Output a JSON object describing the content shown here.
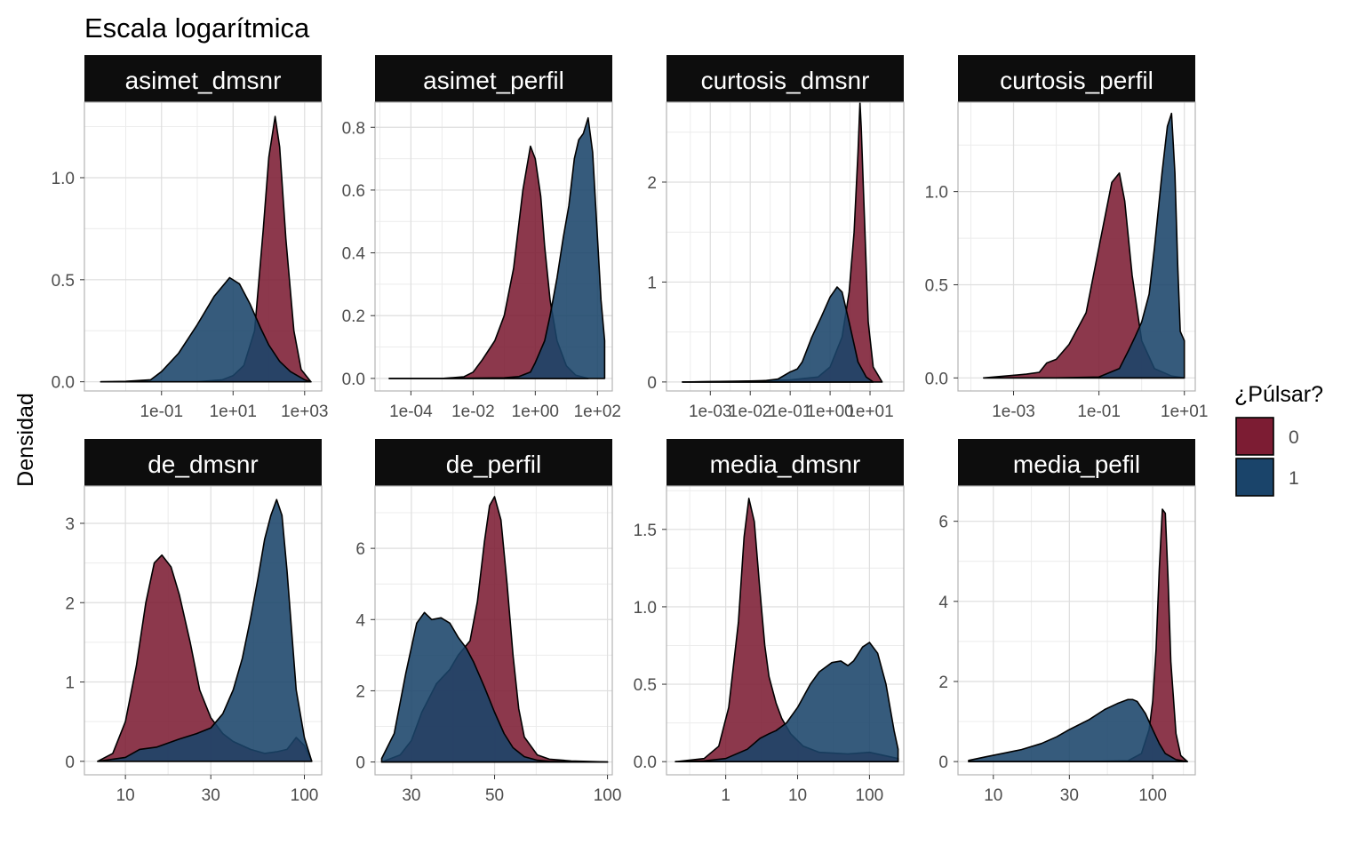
{
  "chart_data": {
    "type": "area",
    "title": "Escala logarítmica",
    "ylabel": "Densidad",
    "xlabel": "",
    "x_scale": "log10",
    "grid": true,
    "legend": {
      "title": "¿Púlsar?",
      "position": "right",
      "entries": [
        {
          "name": "0",
          "color": "#7c1c33"
        },
        {
          "name": "1",
          "color": "#1a446a"
        }
      ]
    },
    "panels": [
      {
        "name": "asimet_dmsnr",
        "xlim": [
          0.0007,
          3000
        ],
        "ylim": [
          -0.045,
          1.37
        ],
        "xticks": [
          0.1,
          10,
          1000
        ],
        "xtick_labels": [
          "1e-01",
          "1e+01",
          "1e+03"
        ],
        "yticks": [
          0,
          0.5,
          1.0
        ],
        "ytick_labels": [
          "0.0",
          "0.5",
          "1.0"
        ],
        "series": [
          {
            "name": "0",
            "x": [
              0.002,
              0.1,
              1,
              5,
              10,
              20,
              40,
              70,
              100,
              150,
              200,
              300,
              500,
              800,
              1500
            ],
            "y": [
              0,
              0,
              0,
              0.01,
              0.03,
              0.08,
              0.25,
              0.75,
              1.1,
              1.3,
              1.15,
              0.7,
              0.25,
              0.06,
              0
            ]
          },
          {
            "name": "1",
            "x": [
              0.002,
              0.01,
              0.05,
              0.1,
              0.3,
              1,
              3,
              8,
              15,
              30,
              60,
              100,
              200,
              400,
              1000,
              1500
            ],
            "y": [
              0,
              0.002,
              0.01,
              0.05,
              0.14,
              0.28,
              0.42,
              0.51,
              0.48,
              0.38,
              0.26,
              0.18,
              0.1,
              0.05,
              0.01,
              0
            ]
          }
        ]
      },
      {
        "name": "asimet_perfil",
        "xlim": [
          7e-06,
          300
        ],
        "ylim": [
          -0.04,
          0.88
        ],
        "xticks": [
          0.0001,
          0.01,
          1,
          100
        ],
        "xtick_labels": [
          "1e-04",
          "1e-02",
          "1e+00",
          "1e+02"
        ],
        "yticks": [
          0,
          0.2,
          0.4,
          0.6,
          0.8
        ],
        "ytick_labels": [
          "0.0",
          "0.2",
          "0.4",
          "0.6",
          "0.8"
        ],
        "series": [
          {
            "name": "0",
            "x": [
              2e-05,
              0.001,
              0.005,
              0.01,
              0.02,
              0.05,
              0.1,
              0.2,
              0.4,
              0.7,
              1,
              1.5,
              2,
              3,
              5,
              10,
              20,
              50
            ],
            "y": [
              0,
              0,
              0.005,
              0.02,
              0.06,
              0.12,
              0.2,
              0.35,
              0.6,
              0.74,
              0.7,
              0.58,
              0.42,
              0.25,
              0.12,
              0.04,
              0.01,
              0
            ]
          },
          {
            "name": "1",
            "x": [
              2e-05,
              0.001,
              0.1,
              0.3,
              0.7,
              1,
              2,
              3,
              5,
              8,
              12,
              18,
              25,
              35,
              50,
              70,
              130,
              170
            ],
            "y": [
              0,
              0,
              0.002,
              0.006,
              0.02,
              0.05,
              0.12,
              0.2,
              0.32,
              0.45,
              0.55,
              0.7,
              0.76,
              0.78,
              0.83,
              0.72,
              0.25,
              0.12
            ]
          }
        ]
      },
      {
        "name": "curtosis_dmsnr",
        "xlim": [
          8e-05,
          70
        ],
        "ylim": [
          -0.09,
          2.8
        ],
        "xticks": [
          0.001,
          0.01,
          0.1,
          1,
          10
        ],
        "xtick_labels": [
          "1e-03",
          "1e-02",
          "1e-01",
          "1e+00",
          "1e+01"
        ],
        "yticks": [
          0,
          1,
          2
        ],
        "ytick_labels": [
          "0",
          "1",
          "2"
        ],
        "series": [
          {
            "name": "0",
            "x": [
              0.0002,
              0.01,
              0.1,
              0.5,
              1,
              2,
              3,
              4,
              5,
              5.6,
              6,
              7,
              9,
              12,
              20
            ],
            "y": [
              0,
              0.01,
              0.02,
              0.05,
              0.15,
              0.45,
              0.9,
              1.5,
              2.3,
              2.8,
              2.55,
              1.8,
              0.6,
              0.15,
              0
            ]
          },
          {
            "name": "1",
            "x": [
              0.0002,
              0.005,
              0.02,
              0.05,
              0.1,
              0.15,
              0.2,
              0.35,
              0.6,
              1,
              1.5,
              2,
              3,
              5,
              8,
              12
            ],
            "y": [
              0,
              0.005,
              0.01,
              0.03,
              0.1,
              0.13,
              0.2,
              0.45,
              0.65,
              0.85,
              0.95,
              0.9,
              0.6,
              0.2,
              0.05,
              0
            ]
          }
        ]
      },
      {
        "name": "curtosis_perfil",
        "xlim": [
          5e-05,
          18
        ],
        "ylim": [
          -0.07,
          1.48
        ],
        "xticks": [
          0.001,
          0.1,
          10
        ],
        "xtick_labels": [
          "1e-03",
          "1e-01",
          "1e+01"
        ],
        "yticks": [
          0,
          0.5,
          1.0
        ],
        "ytick_labels": [
          "0.0",
          "0.5",
          "1.0"
        ],
        "series": [
          {
            "name": "0",
            "x": [
              0.0002,
              0.002,
              0.004,
              0.006,
              0.01,
              0.02,
              0.05,
              0.1,
              0.2,
              0.3,
              0.4,
              0.6,
              1,
              2,
              5,
              10
            ],
            "y": [
              0,
              0.02,
              0.03,
              0.08,
              0.1,
              0.18,
              0.35,
              0.7,
              1.05,
              1.1,
              0.95,
              0.55,
              0.2,
              0.05,
              0.01,
              0
            ]
          },
          {
            "name": "1",
            "x": [
              0.0002,
              0.01,
              0.1,
              0.3,
              0.5,
              0.7,
              1,
              1.5,
              2,
              3,
              4,
              5,
              6,
              7,
              8,
              10
            ],
            "y": [
              0,
              0,
              0.005,
              0.05,
              0.15,
              0.22,
              0.3,
              0.45,
              0.7,
              1.1,
              1.35,
              1.42,
              1.1,
              0.6,
              0.25,
              0.2
            ]
          }
        ]
      },
      {
        "name": "de_dmsnr",
        "xlim": [
          5.9,
          125
        ],
        "ylim": [
          -0.17,
          3.47
        ],
        "xticks": [
          10,
          30,
          100
        ],
        "xtick_labels": [
          "10",
          "30",
          "100"
        ],
        "yticks": [
          0,
          1,
          2,
          3
        ],
        "ytick_labels": [
          "0",
          "1",
          "2",
          "3"
        ],
        "series": [
          {
            "name": "0",
            "x": [
              7,
              8.5,
              10,
              11.5,
              13,
              14.5,
              16,
              18,
              20,
              23,
              26,
              30,
              35,
              40,
              50,
              60,
              70,
              80,
              90,
              100,
              110
            ],
            "y": [
              0,
              0.1,
              0.5,
              1.2,
              2.0,
              2.5,
              2.6,
              2.45,
              2.1,
              1.5,
              0.9,
              0.55,
              0.35,
              0.25,
              0.15,
              0.1,
              0.12,
              0.15,
              0.3,
              0.2,
              0
            ]
          },
          {
            "name": "1",
            "x": [
              7,
              10,
              12,
              15,
              20,
              25,
              30,
              35,
              40,
              45,
              50,
              55,
              60,
              65,
              70,
              75,
              80,
              90,
              100,
              110
            ],
            "y": [
              0,
              0.05,
              0.15,
              0.18,
              0.28,
              0.35,
              0.42,
              0.6,
              0.9,
              1.3,
              1.8,
              2.3,
              2.8,
              3.1,
              3.3,
              3.1,
              2.4,
              0.9,
              0.3,
              0
            ]
          }
        ]
      },
      {
        "name": "de_perfil",
        "xlim": [
          24,
          103
        ],
        "ylim": [
          -0.36,
          7.75
        ],
        "xticks": [
          30,
          50,
          100
        ],
        "xtick_labels": [
          "30",
          "50",
          "100"
        ],
        "yticks": [
          0,
          2,
          4,
          6
        ],
        "ytick_labels": [
          "0",
          "2",
          "4",
          "6"
        ],
        "series": [
          {
            "name": "0",
            "x": [
              25,
              28,
              30,
              32,
              35,
              38,
              40,
              43,
              45,
              47,
              48.5,
              50,
              52,
              54,
              56,
              58,
              60,
              65,
              70,
              80,
              100
            ],
            "y": [
              0,
              0.2,
              0.6,
              1.4,
              2.2,
              2.6,
              3.0,
              3.4,
              4.5,
              6.2,
              7.2,
              7.45,
              6.8,
              5.0,
              3.0,
              1.5,
              0.7,
              0.2,
              0.08,
              0.03,
              0
            ]
          },
          {
            "name": "1",
            "x": [
              25,
              27,
              29,
              31,
              32.5,
              34,
              36,
              38,
              40,
              42,
              44,
              47,
              50,
              53,
              56,
              60,
              65,
              70,
              80,
              100
            ],
            "y": [
              0.1,
              0.8,
              2.5,
              3.9,
              4.2,
              4.0,
              4.05,
              3.9,
              3.5,
              3.2,
              2.8,
              2.1,
              1.4,
              0.8,
              0.4,
              0.15,
              0.05,
              0.02,
              0.01,
              0
            ]
          }
        ]
      },
      {
        "name": "media_dmsnr",
        "xlim": [
          0.15,
          300
        ],
        "ylim": [
          -0.085,
          1.78
        ],
        "xticks": [
          1,
          10,
          100
        ],
        "xtick_labels": [
          "1",
          "10",
          "100"
        ],
        "yticks": [
          0,
          0.5,
          1.0,
          1.5
        ],
        "ytick_labels": [
          "0.0",
          "0.5",
          "1.0",
          "1.5"
        ],
        "series": [
          {
            "name": "0",
            "x": [
              0.2,
              0.5,
              0.8,
              1.1,
              1.5,
              1.8,
              2.1,
              2.5,
              3,
              3.5,
              4,
              5,
              6,
              8,
              12,
              20,
              50,
              100,
              250
            ],
            "y": [
              0,
              0.02,
              0.1,
              0.35,
              0.9,
              1.45,
              1.7,
              1.55,
              1.1,
              0.75,
              0.55,
              0.38,
              0.28,
              0.18,
              0.1,
              0.06,
              0.05,
              0.06,
              0.02
            ]
          },
          {
            "name": "1",
            "x": [
              0.2,
              0.5,
              1,
              2,
              3,
              4,
              5,
              7,
              10,
              15,
              20,
              30,
              40,
              50,
              60,
              80,
              100,
              130,
              170,
              220,
              250
            ],
            "y": [
              0,
              0.005,
              0.02,
              0.08,
              0.15,
              0.18,
              0.2,
              0.25,
              0.35,
              0.5,
              0.58,
              0.64,
              0.65,
              0.62,
              0.65,
              0.74,
              0.77,
              0.7,
              0.5,
              0.2,
              0.08
            ]
          }
        ]
      },
      {
        "name": "media_pefil",
        "xlim": [
          6,
          185
        ],
        "ylim": [
          -0.33,
          6.88
        ],
        "xticks": [
          10,
          30,
          100
        ],
        "xtick_labels": [
          "10",
          "30",
          "100"
        ],
        "yticks": [
          0,
          2,
          4,
          6
        ],
        "ytick_labels": [
          "0",
          "2",
          "4",
          "6"
        ],
        "series": [
          {
            "name": "0",
            "x": [
              7,
              40,
              70,
              85,
              95,
              100,
              105,
              110,
              115,
              120,
              125,
              130,
              140,
              150,
              165
            ],
            "y": [
              0,
              0,
              0.02,
              0.2,
              0.8,
              1.5,
              2.8,
              4.8,
              6.3,
              6.2,
              4.5,
              2.5,
              0.7,
              0.15,
              0
            ]
          },
          {
            "name": "1",
            "x": [
              7,
              9,
              12,
              15,
              20,
              25,
              30,
              40,
              50,
              60,
              70,
              75,
              80,
              90,
              100,
              110,
              120,
              140,
              165
            ],
            "y": [
              0.03,
              0.12,
              0.22,
              0.3,
              0.45,
              0.62,
              0.8,
              1.05,
              1.3,
              1.45,
              1.55,
              1.55,
              1.5,
              1.2,
              0.8,
              0.45,
              0.2,
              0.05,
              0
            ]
          }
        ]
      }
    ]
  }
}
